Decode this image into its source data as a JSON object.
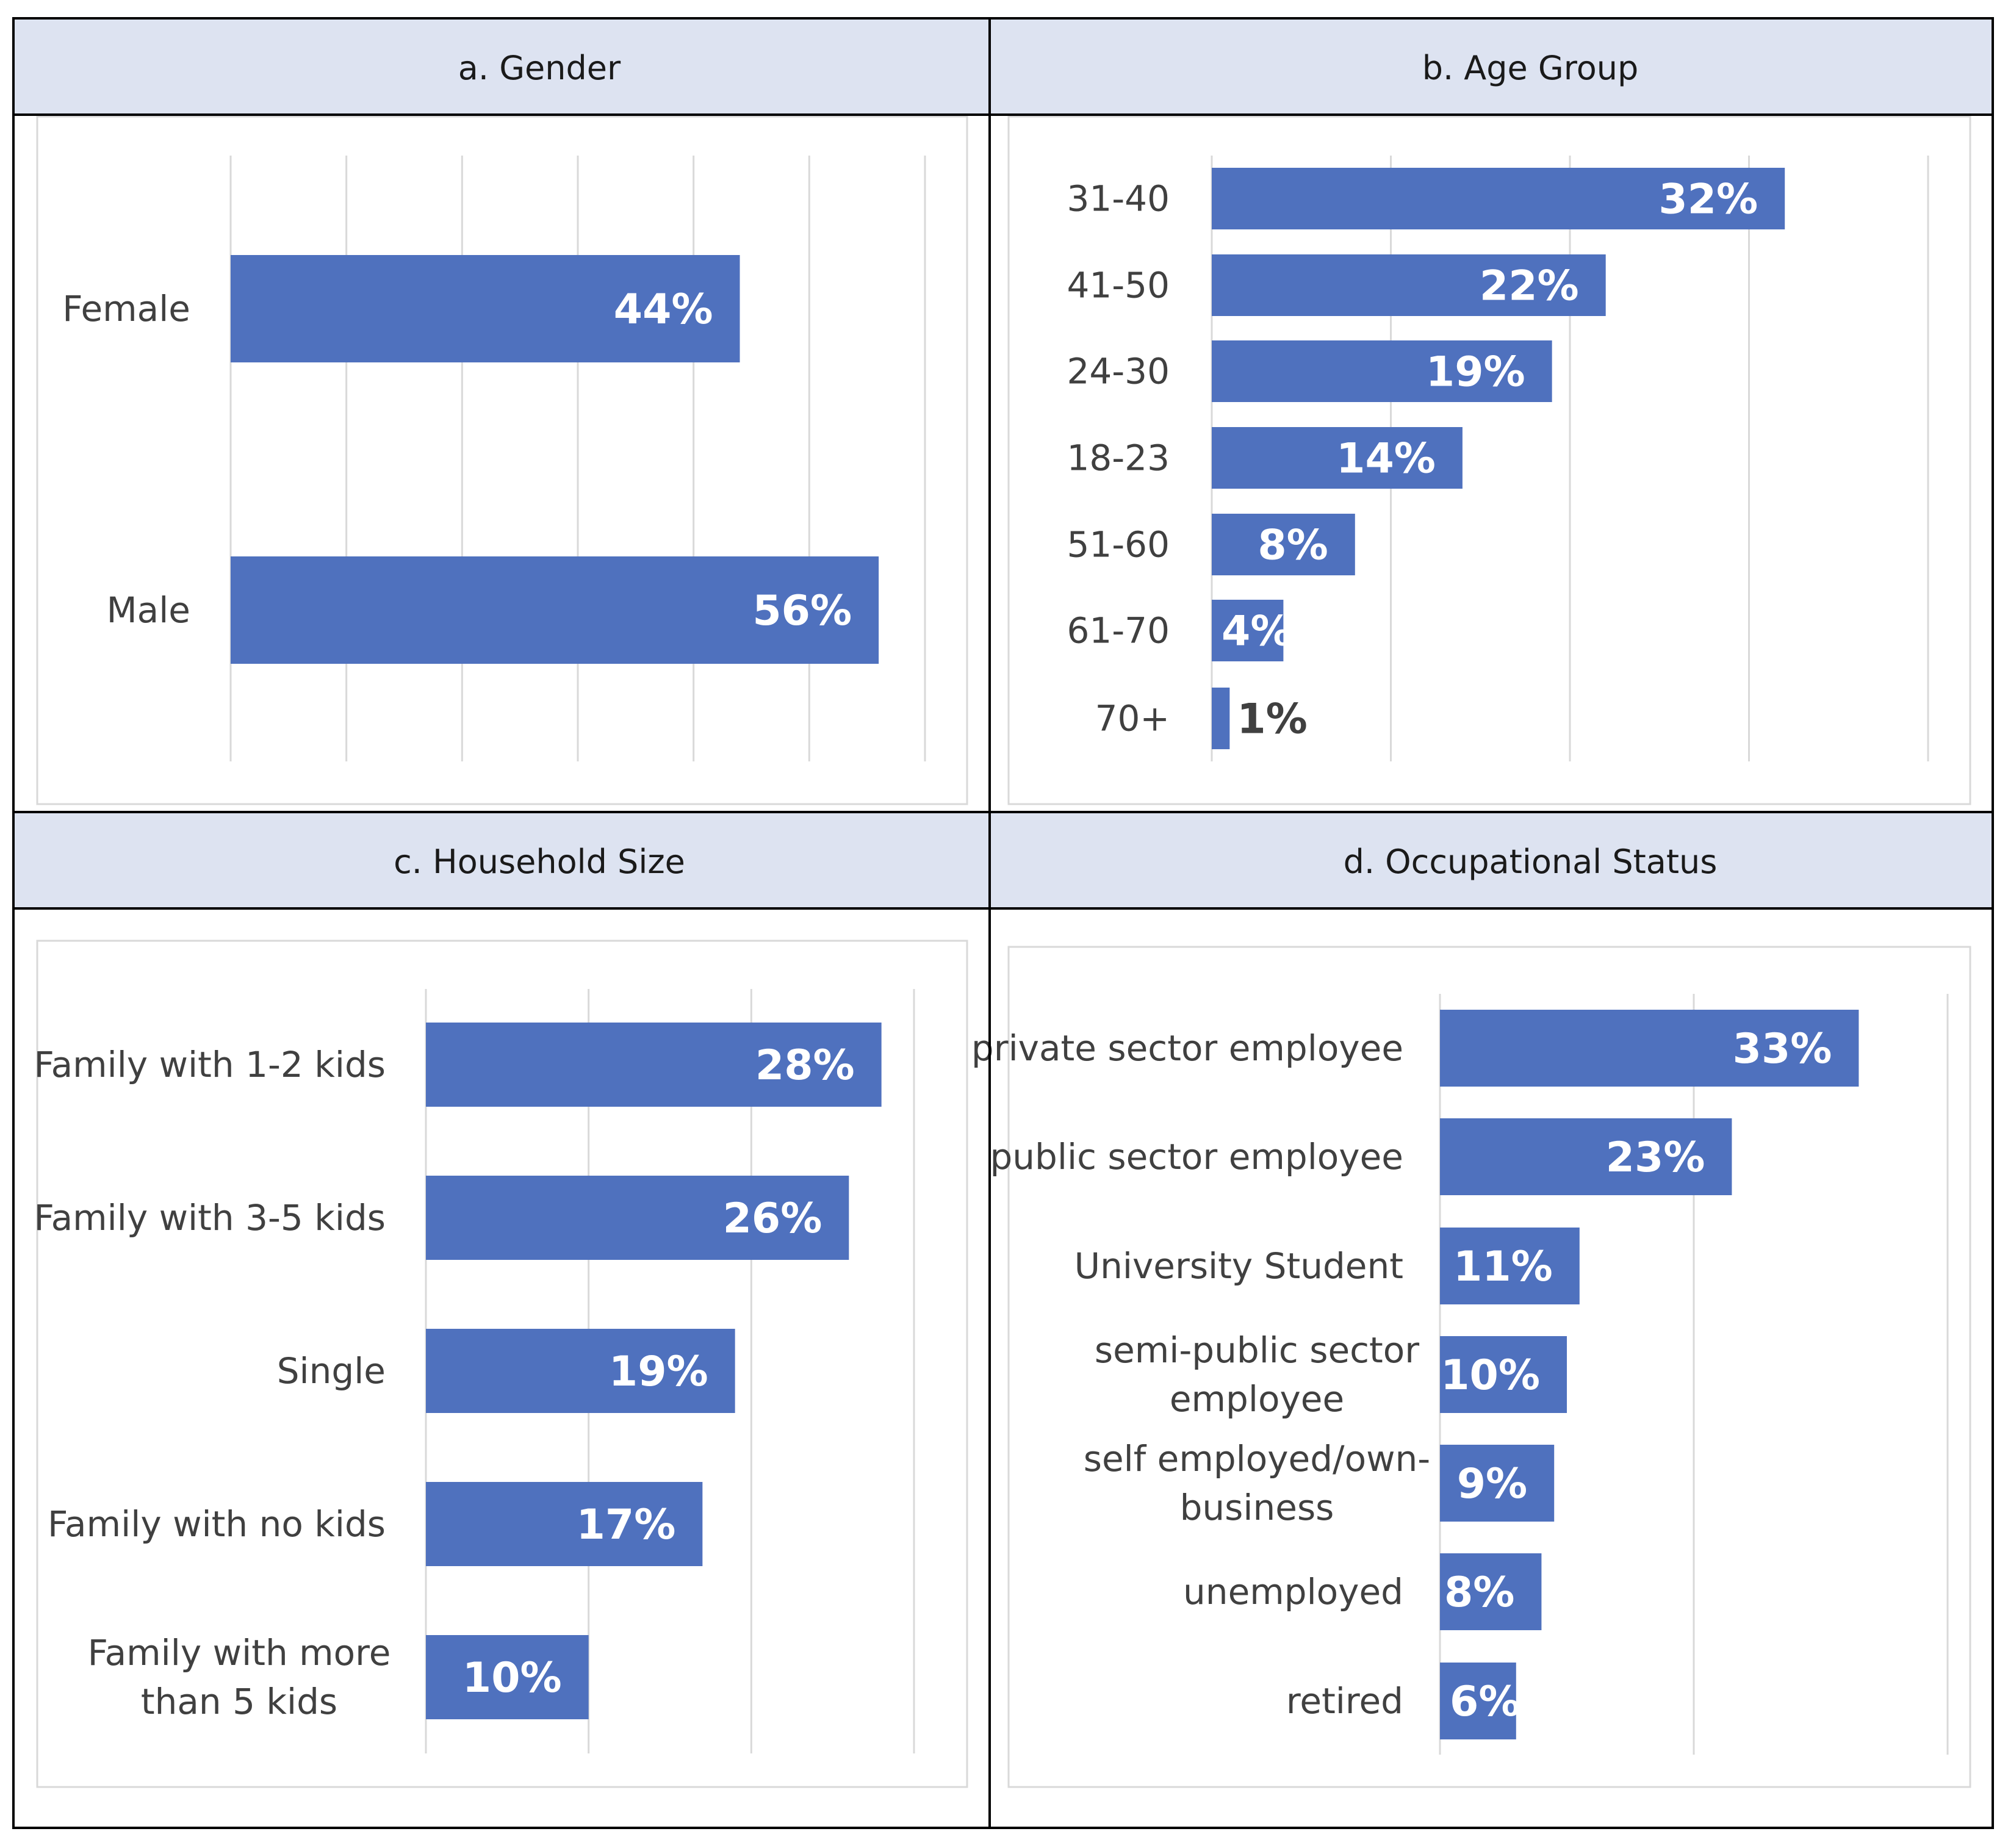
{
  "colors": {
    "bar": "#4f71be",
    "header_bg": "#dde3f1",
    "grid": "#d9d9d9",
    "border": "#000000",
    "plot_border": "#d9d9d9",
    "value_label_inside": "#ffffff",
    "value_label_outside": "#404040"
  },
  "chart_data": [
    {
      "type": "bar",
      "orientation": "horizontal",
      "title": "a. Gender",
      "categories": [
        "Female",
        "Male"
      ],
      "values": [
        44,
        56
      ],
      "value_labels": [
        "44%",
        "56%"
      ],
      "xlim": [
        0,
        60
      ],
      "grid": true
    },
    {
      "type": "bar",
      "orientation": "horizontal",
      "title": "b. Age Group",
      "categories": [
        "31-40",
        "41-50",
        "24-30",
        "18-23",
        "51-60",
        "61-70",
        "70+"
      ],
      "values": [
        32,
        22,
        19,
        14,
        8,
        4,
        1
      ],
      "value_labels": [
        "32%",
        "22%",
        "19%",
        "14%",
        "8%",
        "4%",
        "1%"
      ],
      "xlim": [
        0,
        40
      ],
      "grid": true
    },
    {
      "type": "bar",
      "orientation": "horizontal",
      "title": "c. Household Size",
      "categories": [
        "Family with 1-2 kids",
        "Family with 3-5 kids",
        "Single",
        "Family with no kids",
        "Family with more than 5 kids"
      ],
      "values": [
        28,
        26,
        19,
        17,
        10
      ],
      "value_labels": [
        "28%",
        "26%",
        "19%",
        "17%",
        "10%"
      ],
      "xlim": [
        0,
        30
      ],
      "grid": true
    },
    {
      "type": "bar",
      "orientation": "horizontal",
      "title": "d. Occupational Status",
      "categories": [
        "private sector employee",
        "public sector employee",
        "University Student",
        "semi-public sector employee",
        "self employed/own-business",
        "unemployed",
        "retired"
      ],
      "values": [
        33,
        23,
        11,
        10,
        9,
        8,
        6
      ],
      "value_labels": [
        "33%",
        "23%",
        "11%",
        "10%",
        "9%",
        "8%",
        "6%"
      ],
      "xlim": [
        0,
        40
      ],
      "grid": true
    }
  ]
}
